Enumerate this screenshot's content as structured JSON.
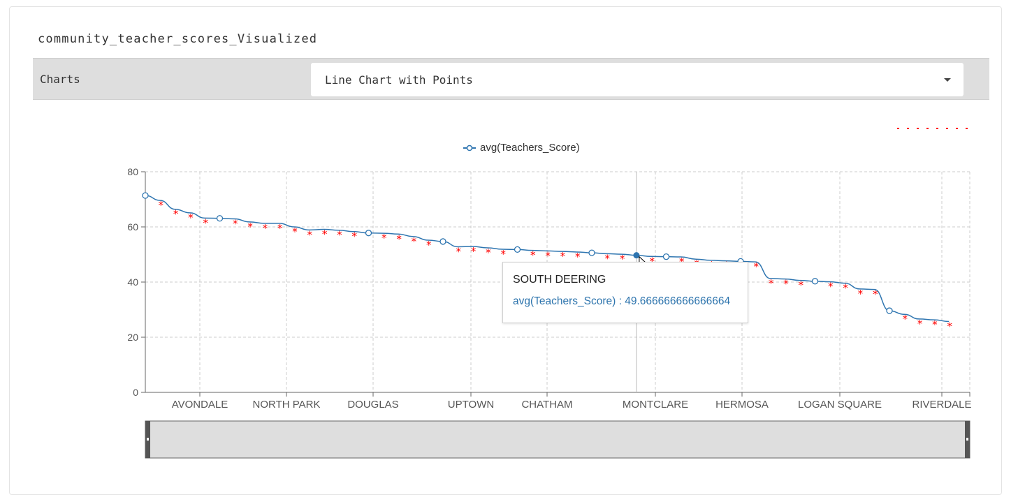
{
  "title": "community_teacher_scores_Visualized",
  "toolbar": {
    "label": "Charts",
    "selected_chart": "Line Chart with Points"
  },
  "colors": {
    "line": "#2e75b0",
    "star": "#ff0000",
    "grid": "#cccccc",
    "axis": "#666666"
  },
  "tooltip": {
    "title": "SOUTH DEERING",
    "value_text": "avg(Teachers_Score) : 49.666666666666664"
  },
  "chart_data": {
    "type": "line",
    "series": [
      {
        "name": "avg(Teachers_Score)",
        "values": [
          71.4,
          69.6,
          66.4,
          65.1,
          63.2,
          63.1,
          62.9,
          61.8,
          61.3,
          61.3,
          60.0,
          58.9,
          59.1,
          58.8,
          58.3,
          57.8,
          57.7,
          57.4,
          56.5,
          55.2,
          54.7,
          52.8,
          52.9,
          52.4,
          51.9,
          51.8,
          51.5,
          51.3,
          51.1,
          50.9,
          50.6,
          50.3,
          50.1,
          49.7,
          49.3,
          49.2,
          49.1,
          48.3,
          47.9,
          47.7,
          47.5,
          47.3,
          41.3,
          41.1,
          40.6,
          40.3,
          40.1,
          39.6,
          37.5,
          37.3,
          29.6,
          28.3,
          26.6,
          26.3,
          25.7
        ]
      }
    ],
    "category_labels": [
      "AVONDALE",
      "NORTH PARK",
      "DOUGLAS",
      "UPTOWN",
      "CHATHAM",
      "MONTCLARE",
      "HERMOSA",
      "LOGAN SQUARE",
      "RIVERDALE"
    ],
    "yticks": [
      0,
      20,
      40,
      60,
      80
    ],
    "ylim": [
      0,
      80
    ],
    "legend_position": "top-center",
    "grid": true
  }
}
